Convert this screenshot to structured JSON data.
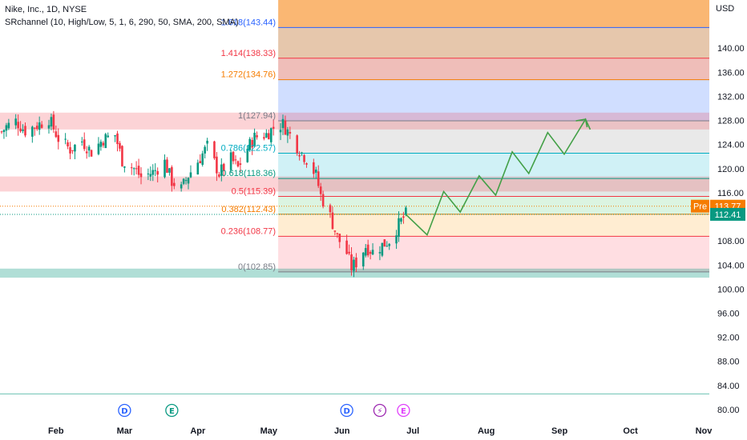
{
  "header": {
    "title": "Nike, Inc., 1D, NYSE",
    "indicator": "SRchannel (10, High/Low, 5, 1, 6, 290, 50, SMA, 200, SMA)"
  },
  "currency": "USD",
  "price_tags": {
    "pre_label": "Pre",
    "pre_value": "113.77",
    "last_value": "112.41",
    "pre_color": "#f57c00",
    "last_color": "#089981"
  },
  "events": [
    {
      "id": "div1",
      "letter": "D",
      "color": "#2962ff",
      "date": "2024-03-01"
    },
    {
      "id": "earn1",
      "letter": "E",
      "color": "#089981",
      "date": "2024-03-21"
    },
    {
      "id": "div2",
      "letter": "D",
      "color": "#2962ff",
      "date": "2024-06-03"
    },
    {
      "id": "split",
      "letter": "⚡",
      "color": "#9c27b0",
      "date": "2024-06-17"
    },
    {
      "id": "earn2",
      "letter": "E",
      "color": "#e040fb",
      "date": "2024-06-27"
    }
  ],
  "chart_data": {
    "type": "candlestick",
    "y_axis": {
      "min": 78,
      "max": 148,
      "ticks": [
        80,
        84,
        88,
        92,
        96,
        100,
        104,
        108,
        112,
        116,
        120,
        124,
        128,
        132,
        136,
        140
      ],
      "tick_labels": [
        "80.00",
        "84.00",
        "88.00",
        "92.00",
        "96.00",
        "100.00",
        "104.00",
        "108.00",
        "112.00",
        "116.00",
        "120.00",
        "124.00",
        "128.00",
        "132.00",
        "136.00",
        "140.00"
      ]
    },
    "x_axis": {
      "start": "2024-01-09",
      "end": "2024-11-01",
      "ticks": [
        {
          "label": "Feb",
          "date": "2024-02-01"
        },
        {
          "label": "Mar",
          "date": "2024-03-01"
        },
        {
          "label": "Apr",
          "date": "2024-04-01"
        },
        {
          "label": "May",
          "date": "2024-05-01"
        },
        {
          "label": "Jun",
          "date": "2024-06-01"
        },
        {
          "label": "Jul",
          "date": "2024-07-01"
        },
        {
          "label": "Aug",
          "date": "2024-08-01"
        },
        {
          "label": "Sep",
          "date": "2024-09-01"
        },
        {
          "label": "Oct",
          "date": "2024-10-01"
        },
        {
          "label": "Nov",
          "date": "2024-11-01"
        }
      ]
    },
    "colors": {
      "up": "#089981",
      "down": "#f23645"
    },
    "close_path": [
      [
        "2024-01-09",
        126.1
      ],
      [
        "2024-01-11",
        127.0
      ],
      [
        "2024-01-15",
        127.9
      ],
      [
        "2024-01-19",
        126.3
      ],
      [
        "2024-01-24",
        127.2
      ],
      [
        "2024-01-29",
        128.3
      ],
      [
        "2024-02-02",
        125.0
      ],
      [
        "2024-02-07",
        123.2
      ],
      [
        "2024-02-12",
        124.6
      ],
      [
        "2024-02-16",
        122.8
      ],
      [
        "2024-02-21",
        124.9
      ],
      [
        "2024-02-26",
        125.6
      ],
      [
        "2024-02-29",
        121.4
      ],
      [
        "2024-03-05",
        120.0
      ],
      [
        "2024-03-08",
        118.6
      ],
      [
        "2024-03-13",
        119.4
      ],
      [
        "2024-03-18",
        121.1
      ],
      [
        "2024-03-21",
        117.9
      ],
      [
        "2024-03-25",
        116.6
      ],
      [
        "2024-03-28",
        118.9
      ],
      [
        "2024-04-02",
        121.8
      ],
      [
        "2024-04-05",
        123.7
      ],
      [
        "2024-04-10",
        119.2
      ],
      [
        "2024-04-15",
        121.6
      ],
      [
        "2024-04-18",
        120.1
      ],
      [
        "2024-04-22",
        123.4
      ],
      [
        "2024-04-25",
        125.2
      ],
      [
        "2024-04-30",
        125.7
      ],
      [
        "2024-05-03",
        126.8
      ],
      [
        "2024-05-07",
        127.4
      ],
      [
        "2024-05-10",
        125.6
      ],
      [
        "2024-05-14",
        123.1
      ],
      [
        "2024-05-17",
        121.6
      ],
      [
        "2024-05-21",
        118.9
      ],
      [
        "2024-05-23",
        115.5
      ],
      [
        "2024-05-27",
        112.1
      ],
      [
        "2024-05-30",
        108.6
      ],
      [
        "2024-06-03",
        106.0
      ],
      [
        "2024-06-05",
        103.6
      ],
      [
        "2024-06-07",
        104.4
      ],
      [
        "2024-06-11",
        107.1
      ],
      [
        "2024-06-14",
        106.2
      ],
      [
        "2024-06-18",
        107.3
      ],
      [
        "2024-06-21",
        108.1
      ],
      [
        "2024-06-25",
        110.7
      ],
      [
        "2024-06-28",
        112.41
      ]
    ],
    "sr_bands": [
      {
        "low": 126.5,
        "high": 129.3,
        "color": "rgba(242,54,69,0.22)"
      },
      {
        "low": 116.2,
        "high": 118.7,
        "color": "rgba(242,54,69,0.22)"
      },
      {
        "low": 101.9,
        "high": 103.4,
        "color": "rgba(8,153,129,0.32)"
      }
    ],
    "extra_lines": [
      {
        "value": 82.6,
        "color": "#089981"
      }
    ],
    "dotted_lines": [
      {
        "value": 113.77,
        "color": "#f57c00"
      },
      {
        "value": 112.41,
        "color": "#089981"
      }
    ],
    "fib": {
      "start": "2024-05-05",
      "levels": [
        {
          "ratio": "1.618",
          "value": 143.44,
          "label": "1.618(143.44)",
          "color": "#2962ff",
          "fill": "rgba(245,124,0,0.55)"
        },
        {
          "ratio": "1.414",
          "value": 138.33,
          "label": "1.414(138.33)",
          "color": "#f23645",
          "fill": "rgba(200,130,70,0.45)"
        },
        {
          "ratio": "1.272",
          "value": 134.76,
          "label": "1.272(134.76)",
          "color": "#f57c00",
          "fill": "rgba(220,110,100,0.45)"
        },
        {
          "ratio": "1",
          "value": 127.94,
          "label": "1(127.94)",
          "color": "#787b86",
          "fill": "rgba(170,195,255,0.55)"
        },
        {
          "ratio": "0.786",
          "value": 122.57,
          "label": "0.786(122.57)",
          "color": "#00acc1",
          "fill": "rgba(200,200,200,0.40)"
        },
        {
          "ratio": "0.618",
          "value": 118.36,
          "label": "0.618(118.36)",
          "color": "#089981",
          "fill": "rgba(150,225,235,0.45)"
        },
        {
          "ratio": "0.5",
          "value": 115.39,
          "label": "0.5(115.39)",
          "color": "#f23645",
          "fill": "rgba(190,205,200,0.45)"
        },
        {
          "ratio": "0.382",
          "value": 112.43,
          "label": "0.382(112.43)",
          "color": "#f57c00",
          "fill": "rgba(190,235,200,0.55)"
        },
        {
          "ratio": "0.236",
          "value": 108.77,
          "label": "0.236(108.77)",
          "color": "#f23645",
          "fill": "rgba(255,225,180,0.60)"
        },
        {
          "ratio": "0",
          "value": 102.85,
          "label": "0(102.85)",
          "color": "#787b86",
          "fill": "rgba(255,205,210,0.65)"
        }
      ]
    },
    "projection": {
      "color": "#43a047",
      "points": [
        [
          "2024-06-28",
          112.4
        ],
        [
          "2024-07-07",
          109.0
        ],
        [
          "2024-07-14",
          116.2
        ],
        [
          "2024-07-21",
          112.8
        ],
        [
          "2024-07-29",
          118.8
        ],
        [
          "2024-08-05",
          115.6
        ],
        [
          "2024-08-12",
          122.8
        ],
        [
          "2024-08-19",
          119.2
        ],
        [
          "2024-08-27",
          126.0
        ],
        [
          "2024-09-03",
          122.4
        ],
        [
          "2024-09-12",
          128.2
        ],
        [
          "2024-09-14",
          126.5
        ]
      ]
    }
  }
}
